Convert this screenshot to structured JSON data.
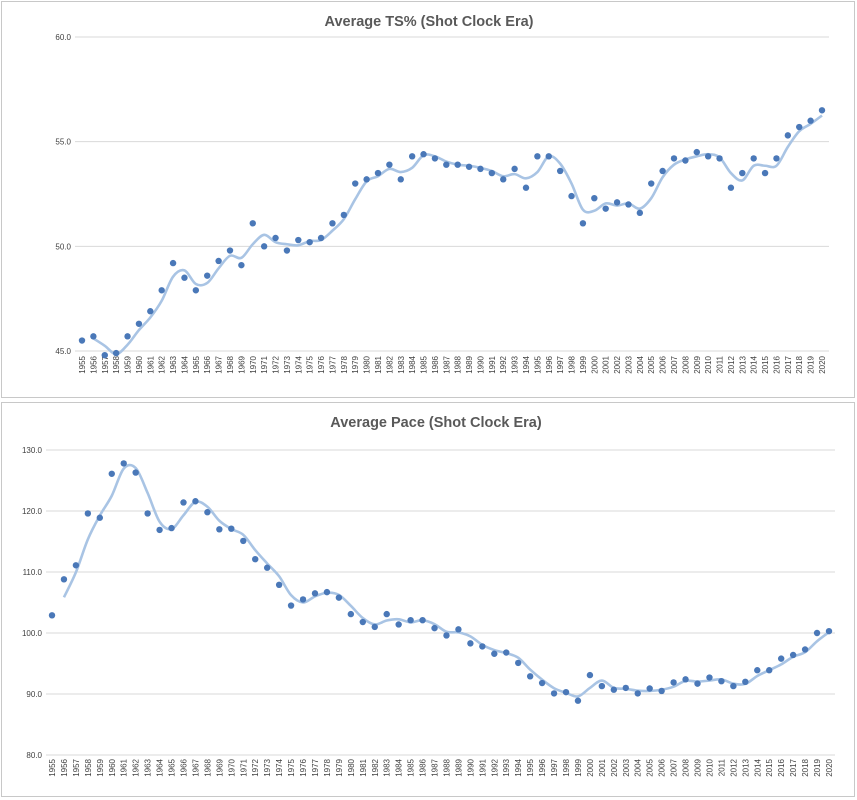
{
  "charts": [
    {
      "title": "Average TS% (Shot Clock Era)",
      "type": "scatter",
      "x": [
        "1955",
        "1956",
        "1957",
        "1958",
        "1959",
        "1960",
        "1961",
        "1962",
        "1963",
        "1964",
        "1965",
        "1966",
        "1967",
        "1968",
        "1969",
        "1970",
        "1971",
        "1972",
        "1973",
        "1974",
        "1975",
        "1976",
        "1977",
        "1978",
        "1979",
        "1980",
        "1981",
        "1982",
        "1983",
        "1984",
        "1985",
        "1986",
        "1987",
        "1988",
        "1989",
        "1990",
        "1991",
        "1992",
        "1993",
        "1994",
        "1995",
        "1996",
        "1997",
        "1998",
        "1999",
        "2000",
        "2001",
        "2002",
        "2003",
        "2004",
        "2005",
        "2006",
        "2007",
        "2008",
        "2009",
        "2010",
        "2011",
        "2012",
        "2013",
        "2014",
        "2015",
        "2016",
        "2017",
        "2018",
        "2019",
        "2020"
      ],
      "y_ticks": [
        "45.0",
        "50.0",
        "55.0",
        "60.0"
      ],
      "ylim": [
        45,
        60
      ],
      "values": [
        45.5,
        45.7,
        44.8,
        44.9,
        45.7,
        46.3,
        46.9,
        47.9,
        49.2,
        48.5,
        47.9,
        48.6,
        49.3,
        49.8,
        49.1,
        51.1,
        50.0,
        50.4,
        49.8,
        50.3,
        50.2,
        50.4,
        51.1,
        51.5,
        53.0,
        53.2,
        53.5,
        53.9,
        53.2,
        54.3,
        54.4,
        54.2,
        53.9,
        53.9,
        53.8,
        53.7,
        53.5,
        53.2,
        53.7,
        52.8,
        54.3,
        54.3,
        53.6,
        52.4,
        51.1,
        52.3,
        51.8,
        52.1,
        52.0,
        51.6,
        53.0,
        53.6,
        54.2,
        54.1,
        54.5,
        54.3,
        54.2,
        52.8,
        53.5,
        54.2,
        53.5,
        54.2,
        55.3,
        55.7,
        56.0,
        56.5
      ],
      "trend_color": "#a9c4e4",
      "point_color": "#4a78b8"
    },
    {
      "title": "Average Pace (Shot Clock Era)",
      "type": "scatter",
      "x": [
        "1955",
        "1956",
        "1957",
        "1958",
        "1959",
        "1960",
        "1961",
        "1962",
        "1963",
        "1964",
        "1965",
        "1966",
        "1967",
        "1968",
        "1969",
        "1970",
        "1971",
        "1972",
        "1973",
        "1974",
        "1975",
        "1976",
        "1977",
        "1978",
        "1979",
        "1980",
        "1981",
        "1982",
        "1983",
        "1984",
        "1985",
        "1986",
        "1987",
        "1988",
        "1989",
        "1990",
        "1991",
        "1992",
        "1993",
        "1994",
        "1995",
        "1996",
        "1997",
        "1998",
        "1999",
        "2000",
        "2001",
        "2002",
        "2003",
        "2004",
        "2005",
        "2006",
        "2007",
        "2008",
        "2009",
        "2010",
        "2011",
        "2012",
        "2013",
        "2014",
        "2015",
        "2016",
        "2017",
        "2018",
        "2019",
        "2020"
      ],
      "y_ticks": [
        "80.0",
        "90.0",
        "100.0",
        "110.0",
        "120.0",
        "130.0"
      ],
      "ylim": [
        80,
        130
      ],
      "values": [
        102.9,
        108.8,
        111.1,
        119.6,
        118.9,
        126.1,
        127.8,
        126.3,
        119.6,
        116.9,
        117.2,
        121.4,
        121.6,
        119.8,
        117.0,
        117.1,
        115.1,
        112.1,
        110.7,
        107.9,
        104.5,
        105.5,
        106.5,
        106.7,
        105.8,
        103.1,
        101.8,
        101.0,
        103.1,
        101.4,
        102.1,
        102.1,
        100.8,
        99.6,
        100.6,
        98.3,
        97.8,
        96.6,
        96.8,
        95.1,
        92.9,
        91.8,
        90.1,
        90.3,
        88.9,
        93.1,
        91.3,
        90.7,
        91.0,
        90.1,
        90.9,
        90.5,
        91.9,
        92.4,
        91.7,
        92.7,
        92.1,
        91.3,
        92.0,
        93.9,
        93.9,
        95.8,
        96.4,
        97.3,
        100.0,
        100.3
      ],
      "trend_color": "#a9c4e4",
      "point_color": "#4a78b8"
    }
  ],
  "chart_data": [
    {
      "type": "scatter",
      "title": "Average TS% (Shot Clock Era)",
      "xlabel": "",
      "ylabel": "",
      "ylim": [
        45,
        60
      ],
      "grid": true,
      "trendline": "moving-average",
      "x": [
        1955,
        1956,
        1957,
        1958,
        1959,
        1960,
        1961,
        1962,
        1963,
        1964,
        1965,
        1966,
        1967,
        1968,
        1969,
        1970,
        1971,
        1972,
        1973,
        1974,
        1975,
        1976,
        1977,
        1978,
        1979,
        1980,
        1981,
        1982,
        1983,
        1984,
        1985,
        1986,
        1987,
        1988,
        1989,
        1990,
        1991,
        1992,
        1993,
        1994,
        1995,
        1996,
        1997,
        1998,
        1999,
        2000,
        2001,
        2002,
        2003,
        2004,
        2005,
        2006,
        2007,
        2008,
        2009,
        2010,
        2011,
        2012,
        2013,
        2014,
        2015,
        2016,
        2017,
        2018,
        2019,
        2020
      ],
      "y": [
        45.5,
        45.7,
        44.8,
        44.9,
        45.7,
        46.3,
        46.9,
        47.9,
        49.2,
        48.5,
        47.9,
        48.6,
        49.3,
        49.8,
        49.1,
        51.1,
        50.0,
        50.4,
        49.8,
        50.3,
        50.2,
        50.4,
        51.1,
        51.5,
        53.0,
        53.2,
        53.5,
        53.9,
        53.2,
        54.3,
        54.4,
        54.2,
        53.9,
        53.9,
        53.8,
        53.7,
        53.5,
        53.2,
        53.7,
        52.8,
        54.3,
        54.3,
        53.6,
        52.4,
        51.1,
        52.3,
        51.8,
        52.1,
        52.0,
        51.6,
        53.0,
        53.6,
        54.2,
        54.1,
        54.5,
        54.3,
        54.2,
        52.8,
        53.5,
        54.2,
        53.5,
        54.2,
        55.3,
        55.7,
        56.0,
        56.5
      ]
    },
    {
      "type": "scatter",
      "title": "Average Pace (Shot Clock Era)",
      "xlabel": "",
      "ylabel": "",
      "ylim": [
        80,
        130
      ],
      "grid": true,
      "trendline": "moving-average",
      "x": [
        1955,
        1956,
        1957,
        1958,
        1959,
        1960,
        1961,
        1962,
        1963,
        1964,
        1965,
        1966,
        1967,
        1968,
        1969,
        1970,
        1971,
        1972,
        1973,
        1974,
        1975,
        1976,
        1977,
        1978,
        1979,
        1980,
        1981,
        1982,
        1983,
        1984,
        1985,
        1986,
        1987,
        1988,
        1989,
        1990,
        1991,
        1992,
        1993,
        1994,
        1995,
        1996,
        1997,
        1998,
        1999,
        2000,
        2001,
        2002,
        2003,
        2004,
        2005,
        2006,
        2007,
        2008,
        2009,
        2010,
        2011,
        2012,
        2013,
        2014,
        2015,
        2016,
        2017,
        2018,
        2019,
        2020
      ],
      "y": [
        102.9,
        108.8,
        111.1,
        119.6,
        118.9,
        126.1,
        127.8,
        126.3,
        119.6,
        116.9,
        117.2,
        121.4,
        121.6,
        119.8,
        117.0,
        117.1,
        115.1,
        112.1,
        110.7,
        107.9,
        104.5,
        105.5,
        106.5,
        106.7,
        105.8,
        103.1,
        101.8,
        101.0,
        103.1,
        101.4,
        102.1,
        102.1,
        100.8,
        99.6,
        100.6,
        98.3,
        97.8,
        96.6,
        96.8,
        95.1,
        92.9,
        91.8,
        90.1,
        90.3,
        88.9,
        93.1,
        91.3,
        90.7,
        91.0,
        90.1,
        90.9,
        90.5,
        91.9,
        92.4,
        91.7,
        92.7,
        92.1,
        91.3,
        92.0,
        93.9,
        93.9,
        95.8,
        96.4,
        97.3,
        100.0,
        100.3
      ]
    }
  ]
}
